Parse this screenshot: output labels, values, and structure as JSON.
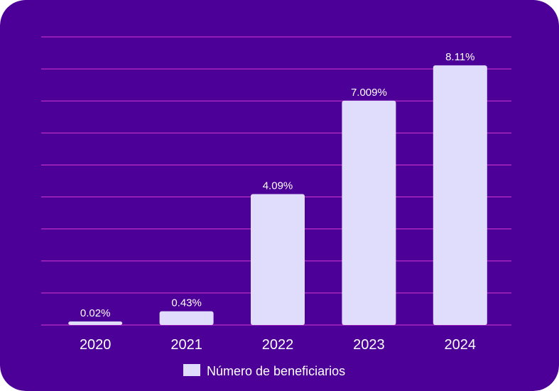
{
  "colors": {
    "background": "#4C0098",
    "bar": "#E0DCFC",
    "grid": "#D838D2",
    "text": "#FFFFFF"
  },
  "chart_data": {
    "type": "bar",
    "categories": [
      "2020",
      "2021",
      "2022",
      "2023",
      "2024"
    ],
    "series": [
      {
        "name": "Número de beneficiarios",
        "values": [
          0.02,
          0.43,
          4.09,
          7.009,
          8.11
        ],
        "labels": [
          "0.02%",
          "0.43%",
          "4.09%",
          "7.009%",
          "8.11%"
        ]
      }
    ],
    "ylim": [
      0,
      9
    ],
    "grid": true,
    "legend": "bottom-center"
  }
}
